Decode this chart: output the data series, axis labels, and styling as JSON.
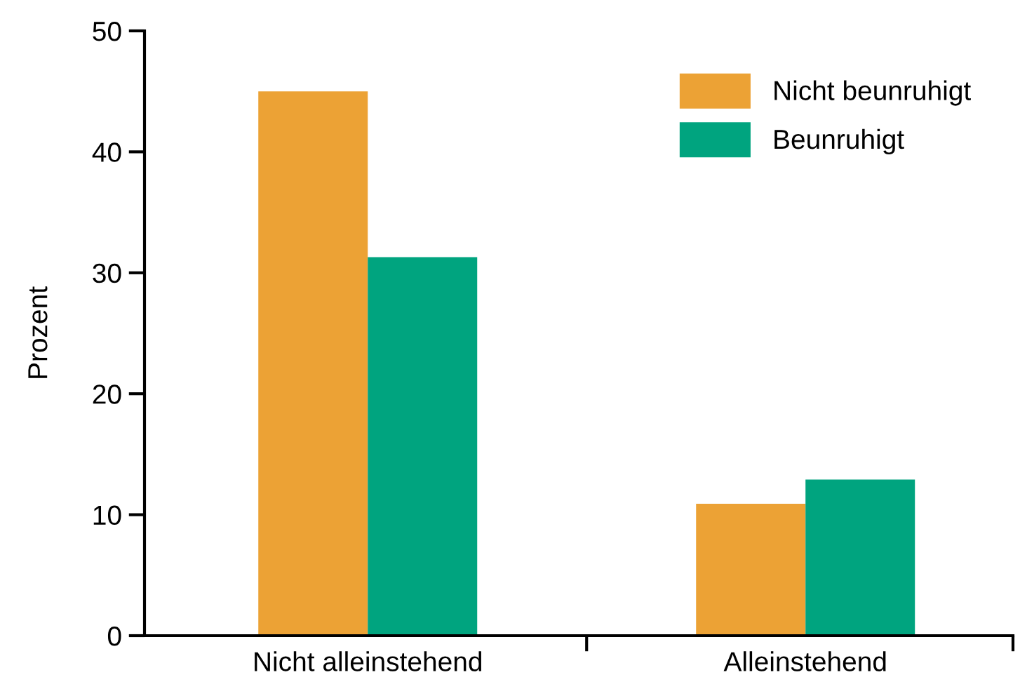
{
  "chart_data": {
    "type": "bar",
    "ylabel": "Prozent",
    "categories": [
      "Nicht alleinstehend",
      "Alleinstehend"
    ],
    "series": [
      {
        "name": "Nicht beunruhigt",
        "color": "#eca235",
        "values": [
          45.0,
          10.9
        ]
      },
      {
        "name": "Beunruhigt",
        "color": "#00a47f",
        "values": [
          31.3,
          12.9
        ]
      }
    ],
    "ylim": [
      0,
      50
    ],
    "yticks": [
      0,
      10,
      20,
      30,
      40,
      50
    ],
    "grid": false,
    "legend": "top right"
  }
}
